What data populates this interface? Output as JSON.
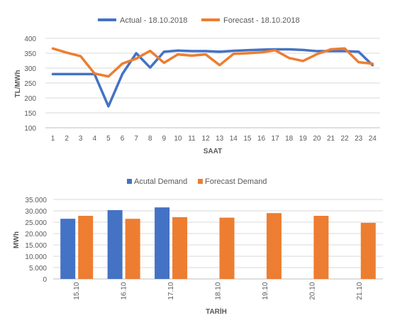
{
  "chart_data": [
    {
      "type": "line",
      "title": "",
      "xlabel": "SAAT",
      "ylabel": "TL/MWh",
      "x": [
        "1",
        "2",
        "3",
        "4",
        "5",
        "6",
        "7",
        "8",
        "9",
        "10",
        "11",
        "12",
        "13",
        "14",
        "15",
        "16",
        "17",
        "18",
        "19",
        "20",
        "21",
        "22",
        "23",
        "24"
      ],
      "ylim": [
        100,
        400
      ],
      "yticks": [
        "100",
        "150",
        "200",
        "250",
        "300",
        "350",
        "400"
      ],
      "grid": true,
      "legend_position": "top",
      "series": [
        {
          "name": "Actual - 18.10.2018",
          "color": "#4472C4",
          "values": [
            280,
            280,
            280,
            280,
            172,
            280,
            350,
            302,
            355,
            359,
            357,
            357,
            355,
            358,
            360,
            362,
            363,
            363,
            361,
            357,
            357,
            357,
            355,
            310
          ]
        },
        {
          "name": "Forecast - 18.10.2018",
          "color": "#ED7D31",
          "values": [
            366,
            352,
            340,
            282,
            272,
            315,
            332,
            358,
            318,
            346,
            342,
            346,
            310,
            348,
            350,
            353,
            360,
            334,
            324,
            347,
            363,
            366,
            320,
            315
          ]
        }
      ]
    },
    {
      "type": "bar",
      "title": "",
      "xlabel": "TARİH",
      "ylabel": "MWh",
      "categories": [
        "15.10",
        "16.10",
        "17.10",
        "18.10",
        "19.10",
        "20.10",
        "21.10"
      ],
      "ylim": [
        0,
        35000
      ],
      "yticks": [
        "0",
        "5.000",
        "10.000",
        "15.000",
        "20.000",
        "25.000",
        "30.000",
        "35.000"
      ],
      "grid": true,
      "legend_position": "top",
      "series": [
        {
          "name": "Acutal Demand",
          "color": "#4472C4",
          "values": [
            26500,
            30300,
            31500,
            null,
            null,
            null,
            null
          ]
        },
        {
          "name": "Forecast Demand",
          "color": "#ED7D31",
          "values": [
            27800,
            26500,
            27200,
            27000,
            29000,
            27800,
            24700
          ]
        }
      ]
    }
  ]
}
